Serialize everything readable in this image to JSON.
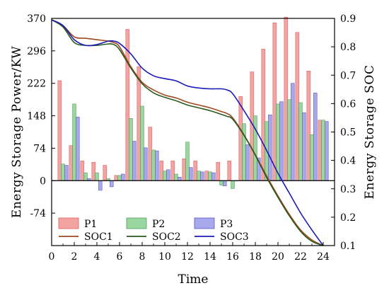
{
  "chart_data": {
    "type": "bar+line",
    "xlabel": "Time",
    "ylabel_left": "Energy Storage Power/KW",
    "ylabel_right": "Energy Storage SOC",
    "xlim": [
      0,
      25
    ],
    "ylim_left": [
      -148,
      370
    ],
    "ylim_right": [
      0.1,
      0.9
    ],
    "xticks": [
      0,
      2,
      4,
      6,
      8,
      10,
      12,
      14,
      16,
      18,
      20,
      22,
      24
    ],
    "yticks_left": [
      -74,
      0,
      74,
      148,
      222,
      296,
      370
    ],
    "yticks_right": [
      0.1,
      0.2,
      0.3,
      0.4,
      0.5,
      0.6,
      0.7,
      0.8,
      0.9
    ],
    "legend_position": "bottom-left",
    "hours": [
      1,
      2,
      3,
      4,
      5,
      6,
      7,
      8,
      9,
      10,
      11,
      12,
      13,
      14,
      15,
      16,
      17,
      18,
      19,
      20,
      21,
      22,
      23,
      24
    ],
    "bar_series": [
      {
        "name": "P1",
        "color": "#f4a3a3",
        "edge": "#e06060",
        "values": [
          228,
          80,
          45,
          42,
          35,
          12,
          345,
          260,
          122,
          45,
          45,
          50,
          45,
          22,
          42,
          45,
          192,
          248,
          300,
          360,
          373,
          338,
          250,
          138
        ]
      },
      {
        "name": "P2",
        "color": "#9ad6a0",
        "edge": "#50a060",
        "values": [
          38,
          175,
          18,
          18,
          5,
          12,
          142,
          170,
          70,
          22,
          15,
          88,
          22,
          20,
          -10,
          -18,
          130,
          148,
          135,
          175,
          185,
          178,
          105,
          138
        ]
      },
      {
        "name": "P3",
        "color": "#a8a8ec",
        "edge": "#5858c8",
        "values": [
          35,
          145,
          5,
          -22,
          -14,
          15,
          90,
          75,
          68,
          25,
          8,
          30,
          20,
          18,
          -12,
          0,
          82,
          52,
          150,
          180,
          222,
          155,
          200,
          135
        ]
      }
    ],
    "line_series": [
      {
        "name": "SOC1",
        "color": "#a04820",
        "x": [
          0,
          1,
          2,
          3,
          4,
          5,
          5.5,
          6,
          7,
          8,
          9,
          10,
          11,
          12,
          13,
          14,
          15,
          15.5,
          16,
          17,
          18,
          19,
          20,
          21,
          22,
          23,
          24
        ],
        "y": [
          0.895,
          0.875,
          0.835,
          0.83,
          0.825,
          0.82,
          0.815,
          0.8,
          0.73,
          0.675,
          0.648,
          0.63,
          0.62,
          0.605,
          0.595,
          0.585,
          0.572,
          0.565,
          0.55,
          0.49,
          0.42,
          0.345,
          0.275,
          0.21,
          0.155,
          0.12,
          0.1
        ]
      },
      {
        "name": "SOC2",
        "color": "#2a5a1e",
        "x": [
          0,
          1,
          2,
          3,
          4,
          5,
          5.5,
          6,
          7,
          8,
          9,
          10,
          11,
          12,
          13,
          14,
          15,
          15.5,
          16,
          17,
          18,
          19,
          20,
          21,
          22,
          23,
          24
        ],
        "y": [
          0.895,
          0.87,
          0.815,
          0.805,
          0.805,
          0.81,
          0.808,
          0.79,
          0.725,
          0.67,
          0.638,
          0.622,
          0.61,
          0.595,
          0.585,
          0.575,
          0.562,
          0.555,
          0.545,
          0.488,
          0.418,
          0.34,
          0.27,
          0.205,
          0.15,
          0.115,
          0.1
        ]
      },
      {
        "name": "SOC3",
        "color": "#1a1ab8",
        "x": [
          0,
          1,
          2,
          3,
          4,
          5,
          5.5,
          6,
          7,
          8,
          9,
          10,
          11,
          12,
          13,
          14,
          15,
          15.5,
          16,
          17,
          18,
          19,
          20,
          21,
          22,
          23,
          24
        ],
        "y": [
          0.895,
          0.875,
          0.825,
          0.805,
          0.808,
          0.82,
          0.82,
          0.812,
          0.775,
          0.725,
          0.698,
          0.688,
          0.68,
          0.662,
          0.655,
          0.652,
          0.652,
          0.648,
          0.635,
          0.575,
          0.51,
          0.435,
          0.355,
          0.285,
          0.215,
          0.155,
          0.1
        ]
      }
    ]
  }
}
